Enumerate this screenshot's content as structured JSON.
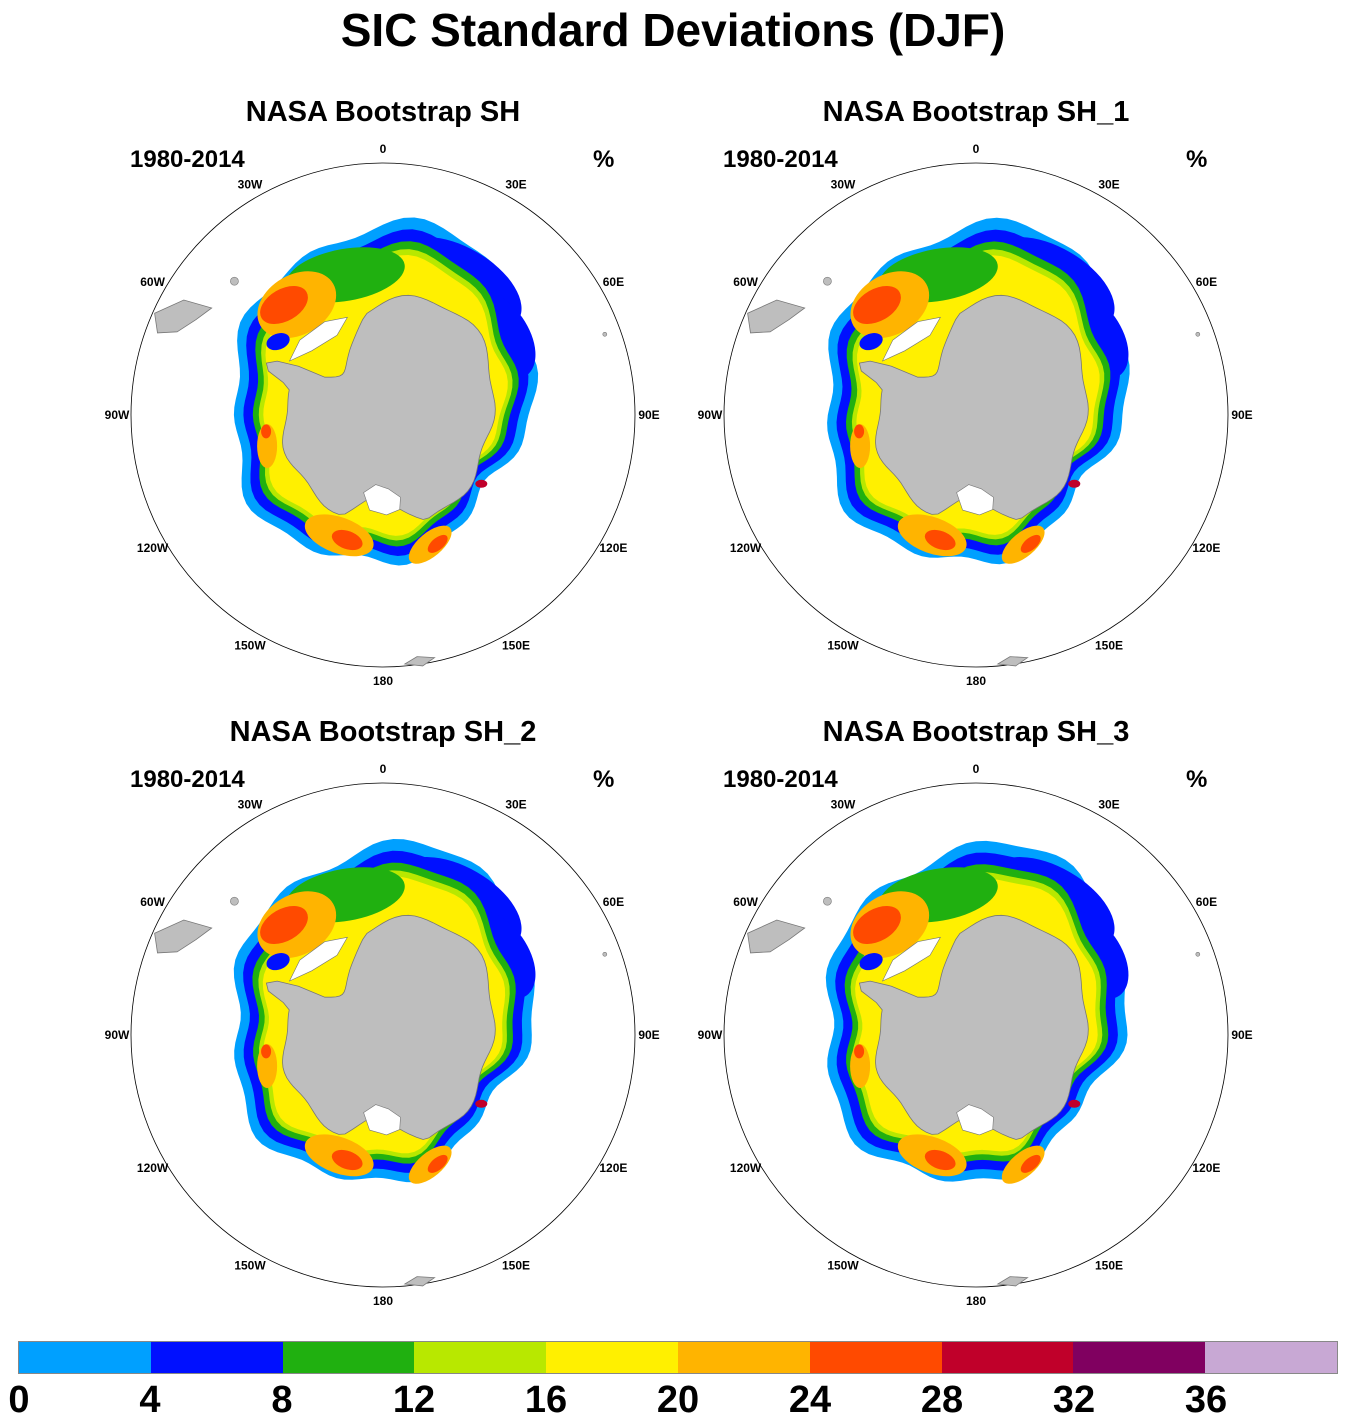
{
  "title": "SIC Standard Deviations (DJF)",
  "panels": [
    {
      "title": "NASA Bootstrap SH",
      "period": "1980-2014",
      "units": "%"
    },
    {
      "title": "NASA Bootstrap SH_1",
      "period": "1980-2014",
      "units": "%"
    },
    {
      "title": "NASA Bootstrap SH_2",
      "period": "1980-2014",
      "units": "%"
    },
    {
      "title": "NASA Bootstrap SH_3",
      "period": "1980-2014",
      "units": "%"
    }
  ],
  "longitude_labels": [
    "0",
    "30E",
    "60E",
    "90E",
    "120E",
    "150E",
    "180",
    "150W",
    "120W",
    "90W",
    "60W",
    "30W"
  ],
  "colorbar": {
    "ticks": [
      "0",
      "4",
      "8",
      "12",
      "16",
      "20",
      "24",
      "28",
      "32",
      "36"
    ],
    "colors": [
      "#00a0ff",
      "#0010ff",
      "#20b010",
      "#b8e800",
      "#fff000",
      "#ffb400",
      "#ff4a00",
      "#c0002a",
      "#800060",
      "#c8a8d4"
    ]
  },
  "colors": {
    "land": "#bebebe",
    "coast": "#777777",
    "ocean": "#ffffff"
  }
}
